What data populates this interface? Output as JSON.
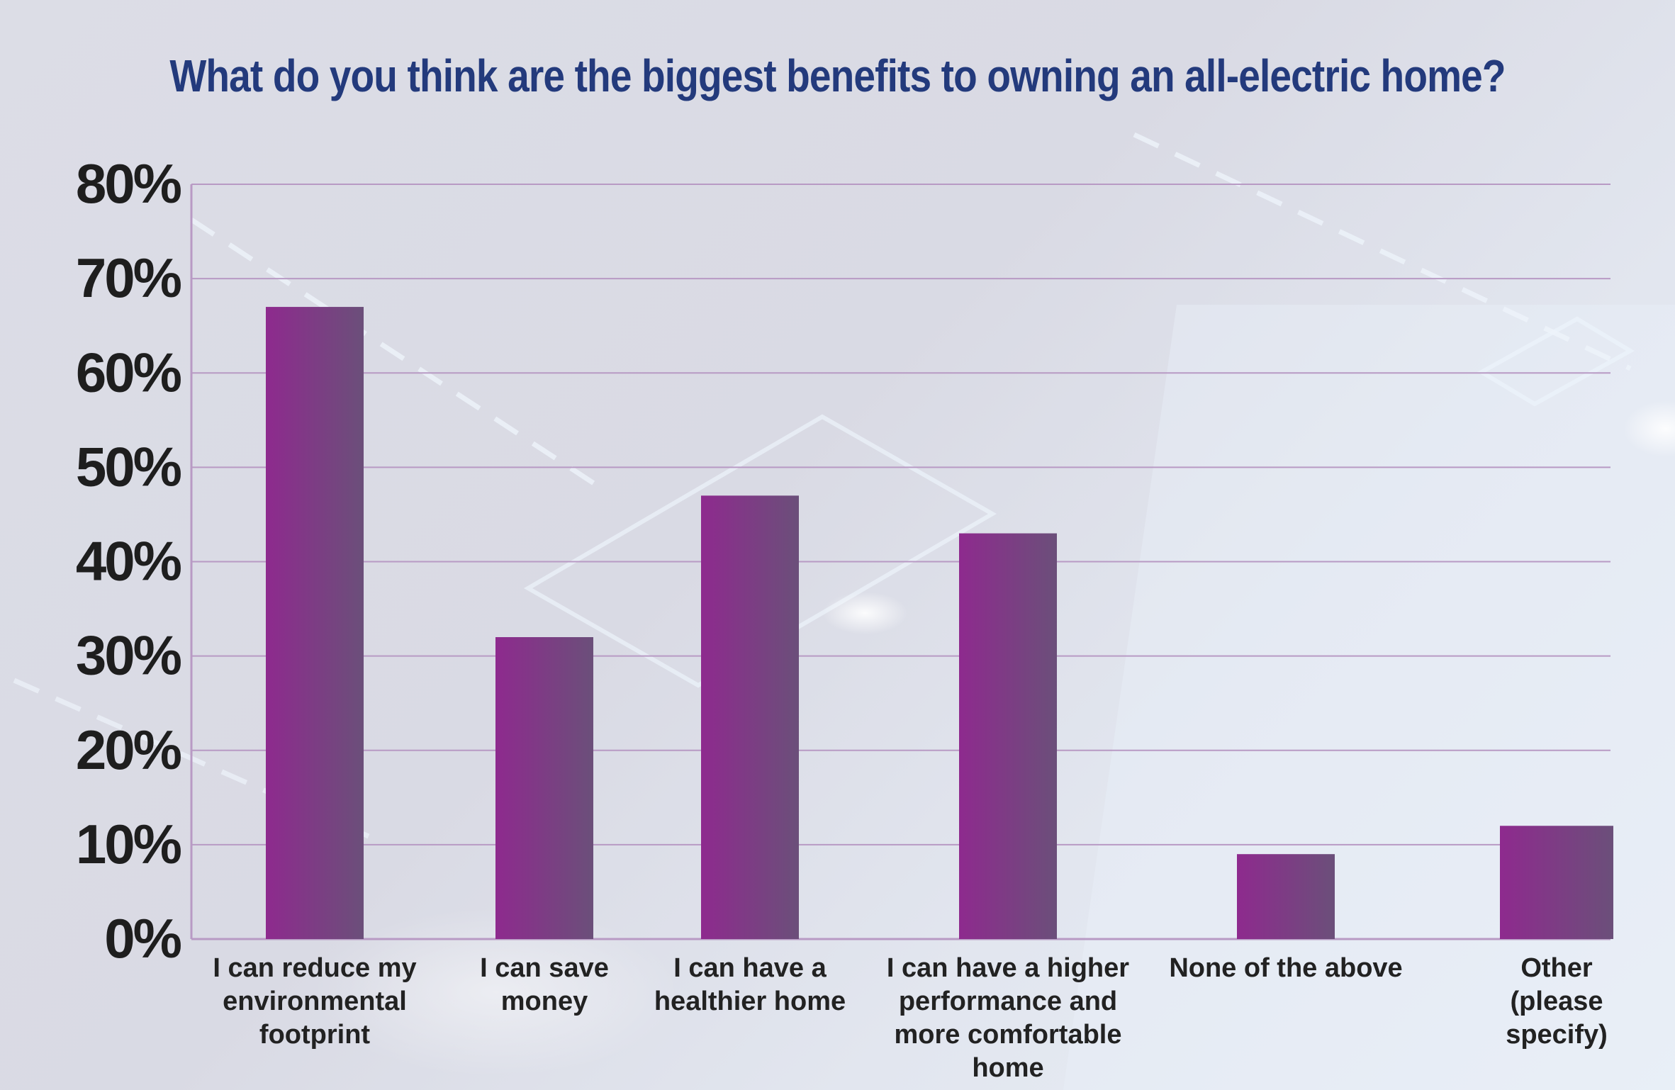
{
  "chart_data": {
    "type": "bar",
    "title": "What do you think are the biggest benefits to owning an all-electric home?",
    "xlabel": "",
    "ylabel": "",
    "ylim": [
      0,
      80
    ],
    "yticks": [
      "0%",
      "10%",
      "20%",
      "30%",
      "40%",
      "50%",
      "60%",
      "70%",
      "80%"
    ],
    "categories": [
      "I can reduce my environmental footprint",
      "I can save money",
      "I can have a healthier home",
      "I can have a higher performance and more comfortable home",
      "None of the above",
      "Other (please specify)"
    ],
    "category_lines": [
      [
        "I can reduce my",
        "environmental",
        "footprint"
      ],
      [
        "I can save",
        "money"
      ],
      [
        "I can have a",
        "healthier home"
      ],
      [
        "I can have a higher",
        "performance and",
        "more comfortable",
        "home"
      ],
      [
        "None of the above"
      ],
      [
        "Other",
        "(please",
        "specify)"
      ]
    ],
    "values": [
      67,
      32,
      47,
      43,
      9,
      12
    ],
    "grid": true,
    "legend": "none"
  },
  "colors": {
    "bar_start": "#8e2a8e",
    "bar_end": "#6b4f7a",
    "grid": "#b89ac4",
    "title": "#233a7c"
  }
}
